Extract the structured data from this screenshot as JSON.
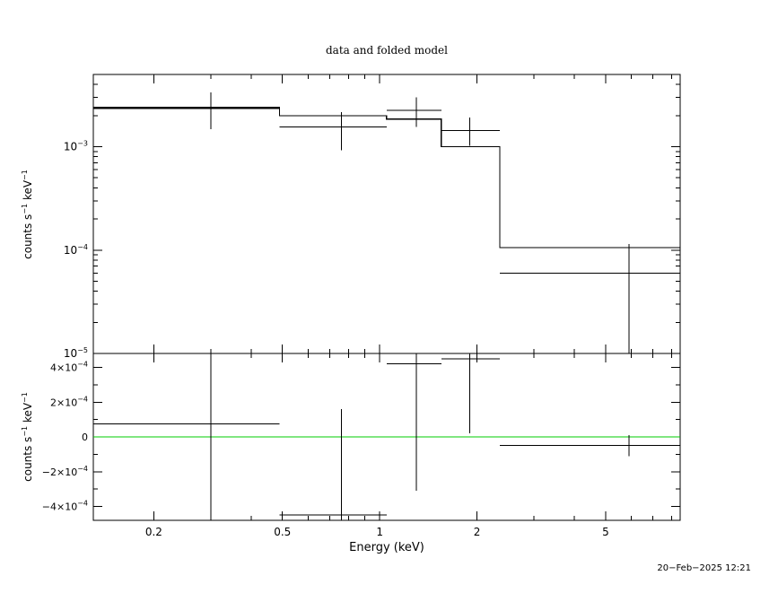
{
  "chart_data": [
    {
      "type": "line",
      "panel": "data",
      "title": "data and folded model",
      "xlabel": "",
      "ylabel": "counts s⁻¹ keV⁻¹",
      "xscale": "log",
      "yscale": "log",
      "xlim": [
        0.13,
        8.5
      ],
      "ylim": [
        1e-05,
        0.005
      ],
      "y_ticks": [
        {
          "value": 0.001,
          "base": "10",
          "exp": "−3"
        },
        {
          "value": 0.0001,
          "base": "10",
          "exp": "−4"
        },
        {
          "value": 1e-05,
          "base": "10",
          "exp": "−5"
        }
      ],
      "data_points": [
        {
          "x": 0.3,
          "xlo": 0.13,
          "xhi": 0.49,
          "y": 0.00235,
          "ylo": 0.00148,
          "yhi": 0.00335
        },
        {
          "x": 0.76,
          "xlo": 0.49,
          "xhi": 1.05,
          "y": 0.00155,
          "ylo": 0.00092,
          "yhi": 0.00215
        },
        {
          "x": 1.3,
          "xlo": 1.05,
          "xhi": 1.55,
          "y": 0.00225,
          "ylo": 0.00155,
          "yhi": 0.003
        },
        {
          "x": 1.9,
          "xlo": 1.55,
          "xhi": 2.35,
          "y": 0.00143,
          "ylo": 0.00102,
          "yhi": 0.00192
        },
        {
          "x": 5.9,
          "xlo": 2.35,
          "xhi": 8.5,
          "y": 6e-05,
          "ylo": 1e-05,
          "yhi": 0.000115
        }
      ],
      "model_steps": [
        {
          "xlo": 0.13,
          "xhi": 0.49,
          "y": 0.0024
        },
        {
          "xlo": 0.49,
          "xhi": 1.05,
          "y": 0.002
        },
        {
          "xlo": 1.05,
          "xhi": 1.55,
          "y": 0.00185
        },
        {
          "xlo": 1.55,
          "xhi": 2.35,
          "y": 0.001
        },
        {
          "xlo": 2.35,
          "xhi": 8.5,
          "y": 0.000106
        }
      ]
    },
    {
      "type": "line",
      "panel": "residuals",
      "xlabel": "Energy (keV)",
      "ylabel": "counts s⁻¹ keV⁻¹",
      "xscale": "log",
      "yscale": "linear",
      "xlim": [
        0.13,
        8.5
      ],
      "ylim": [
        -0.00048,
        0.00048
      ],
      "x_ticks": [
        {
          "value": 0.2,
          "label": "0.2"
        },
        {
          "value": 0.5,
          "label": "0.5"
        },
        {
          "value": 1,
          "label": "1"
        },
        {
          "value": 2,
          "label": "2"
        },
        {
          "value": 5,
          "label": "5"
        }
      ],
      "y_ticks": [
        {
          "value": 0.0004,
          "pre": "4×10",
          "exp": "−4"
        },
        {
          "value": 0.0002,
          "pre": "2×10",
          "exp": "−4"
        },
        {
          "value": 0,
          "pre": "0",
          "exp": ""
        },
        {
          "value": -0.0002,
          "pre": "−2×10",
          "exp": "−4"
        },
        {
          "value": -0.0004,
          "pre": "−4×10",
          "exp": "−4"
        }
      ],
      "zero_line_color": "#00cc00",
      "residuals": [
        {
          "x": 0.3,
          "xlo": 0.13,
          "xhi": 0.49,
          "y": 7.5e-05,
          "ylo": -0.00048,
          "yhi": 0.00048
        },
        {
          "x": 0.76,
          "xlo": 0.49,
          "xhi": 1.05,
          "y": -0.00045,
          "ylo": -0.00048,
          "yhi": 0.00016
        },
        {
          "x": 1.3,
          "xlo": 1.05,
          "xhi": 1.55,
          "y": 0.00042,
          "ylo": -0.00031,
          "yhi": 0.00048
        },
        {
          "x": 1.9,
          "xlo": 1.55,
          "xhi": 2.35,
          "y": 0.00045,
          "ylo": 2e-05,
          "yhi": 0.00048
        },
        {
          "x": 5.9,
          "xlo": 2.35,
          "xhi": 8.5,
          "y": -5e-05,
          "ylo": -0.00011,
          "yhi": 1e-05
        }
      ]
    }
  ],
  "footer": {
    "timestamp": "20−Feb−2025 12:21"
  }
}
